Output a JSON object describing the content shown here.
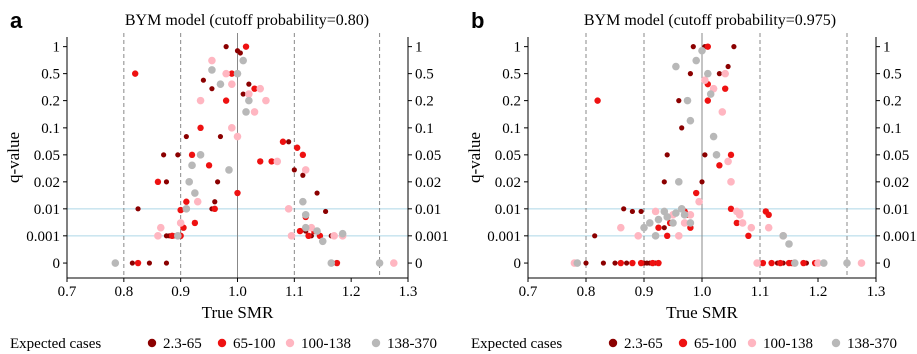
{
  "colors": {
    "series": [
      "#8b0000",
      "#ee1111",
      "#ffb6c1",
      "#b8b8b8"
    ],
    "refline": "#add8e6",
    "vline": "#888888",
    "axis": "#000000"
  },
  "legend": {
    "title": "Expected cases",
    "placement": "bottom",
    "labels": [
      "2.3-65",
      "65-100",
      "100-138",
      "138-370"
    ]
  },
  "chart_data": [
    {
      "type": "scatter",
      "panel_label": "a",
      "title": "BYM model (cutoff probability=0.80)",
      "xlabel": "True SMR",
      "ylabel": "q-value",
      "xlim": [
        0.7,
        1.3
      ],
      "x_ticks": [
        "0.7",
        "0.8",
        "0.9",
        "1.0",
        "1.1",
        "1.2",
        "1.3"
      ],
      "y_ticks": [
        "0",
        "0.001",
        "0.01",
        "0.02",
        "0.05",
        "0.1",
        "0.2",
        "0.5",
        "1"
      ],
      "y_ticks_right": [
        "0",
        "0.001",
        "0.01",
        "0.02",
        "0.05",
        "0.1",
        "0.2",
        "0.5",
        "1"
      ],
      "grid": false,
      "reference_hlines": [
        "0.001",
        "0.01"
      ],
      "dashed_vlines": [
        0.8,
        0.9,
        1.1,
        1.25
      ],
      "solid_vline": 1.0,
      "series": [
        {
          "name": "2.3-65",
          "points": [
            [
              0.815,
              "0"
            ],
            [
              0.845,
              "0"
            ],
            [
              0.875,
              "0"
            ],
            [
              0.89,
              "0.001"
            ],
            [
              0.88,
              "0.001"
            ],
            [
              0.875,
              "0.001"
            ],
            [
              0.825,
              "0.01"
            ],
            [
              0.87,
              "0.05"
            ],
            [
              0.875,
              "0.02"
            ],
            [
              0.895,
              "0.05"
            ],
            [
              0.91,
              "0.08"
            ],
            [
              0.94,
              "0.4"
            ],
            [
              0.955,
              "0.3"
            ],
            [
              0.98,
              "1"
            ],
            [
              1.0,
              "0.9"
            ],
            [
              1.005,
              "0.85"
            ],
            [
              1.01,
              "0.25"
            ],
            [
              0.97,
              "0.08"
            ],
            [
              0.965,
              "0.02"
            ],
            [
              0.92,
              "0.05"
            ],
            [
              1.09,
              "0.07"
            ],
            [
              1.1,
              "0.03"
            ],
            [
              1.115,
              "0.025"
            ],
            [
              1.14,
              "0.015"
            ],
            [
              1.155,
              "0.008"
            ],
            [
              1.165,
              "0.001"
            ],
            [
              1.13,
              "0.001"
            ],
            [
              1.12,
              "0.0015"
            ],
            [
              0.955,
              "0.01"
            ],
            [
              0.96,
              "0.012"
            ],
            [
              1.02,
              "0.35"
            ]
          ]
        },
        {
          "name": "65-100",
          "points": [
            [
              0.82,
              "0.5"
            ],
            [
              0.825,
              "0"
            ],
            [
              0.86,
              "0.02"
            ],
            [
              0.885,
              "0.001"
            ],
            [
              0.9,
              "0.001"
            ],
            [
              0.905,
              "0.002"
            ],
            [
              0.92,
              "0.05"
            ],
            [
              0.935,
              "0.1"
            ],
            [
              0.95,
              "0.035"
            ],
            [
              0.98,
              "0.2"
            ],
            [
              0.99,
              "0.5"
            ],
            [
              1.015,
              "1"
            ],
            [
              1.03,
              "0.3"
            ],
            [
              1.04,
              "0.04"
            ],
            [
              1.06,
              "0.04"
            ],
            [
              1.08,
              "0.07"
            ],
            [
              1.105,
              "0.06"
            ],
            [
              1.115,
              "0.05"
            ],
            [
              1.12,
              "0.005"
            ],
            [
              1.11,
              "0.0015"
            ],
            [
              1.125,
              "0.001"
            ],
            [
              1.145,
              "0.001"
            ],
            [
              1.135,
              "0.0015"
            ],
            [
              1.175,
              "0"
            ],
            [
              0.9,
              "0.009"
            ],
            [
              0.925,
              "0.003"
            ],
            [
              0.96,
              "0.01"
            ],
            [
              1.0,
              "0.015"
            ],
            [
              0.91,
              "0.012"
            ]
          ]
        },
        {
          "name": "100-138",
          "points": [
            [
              0.86,
              "0.001"
            ],
            [
              0.865,
              "0.002"
            ],
            [
              0.9,
              "0.003"
            ],
            [
              0.93,
              "0.012"
            ],
            [
              0.955,
              "0.7"
            ],
            [
              0.98,
              "0.5"
            ],
            [
              0.99,
              "0.35"
            ],
            [
              1.02,
              "0.25"
            ],
            [
              1.03,
              "0.15"
            ],
            [
              1.05,
              "0.2"
            ],
            [
              1.07,
              "0.04"
            ],
            [
              1.09,
              "0.01"
            ],
            [
              1.12,
              "0.03"
            ],
            [
              1.13,
              "0.002"
            ],
            [
              1.17,
              "0.001"
            ],
            [
              1.185,
              "0.001"
            ],
            [
              1.275,
              "0"
            ],
            [
              0.935,
              "0.2"
            ],
            [
              0.99,
              "0.1"
            ],
            [
              1.095,
              "0.001"
            ],
            [
              1.0,
              "0.08"
            ],
            [
              1.04,
              "0.3"
            ]
          ]
        },
        {
          "name": "138-370",
          "points": [
            [
              0.785,
              "0"
            ],
            [
              0.895,
              "0.001"
            ],
            [
              0.91,
              "0.01"
            ],
            [
              0.915,
              "0.02"
            ],
            [
              0.92,
              "0.035"
            ],
            [
              0.935,
              "0.05"
            ],
            [
              0.955,
              "0.55"
            ],
            [
              0.97,
              "0.35"
            ],
            [
              0.985,
              "0.03"
            ],
            [
              1.0,
              "0.5"
            ],
            [
              1.01,
              "0.7"
            ],
            [
              1.02,
              "0.2"
            ],
            [
              1.015,
              "0.15"
            ],
            [
              1.115,
              "0.012"
            ],
            [
              1.12,
              "0.002"
            ],
            [
              1.14,
              "0.0015"
            ],
            [
              1.15,
              "0.0008"
            ],
            [
              1.165,
              "0"
            ],
            [
              1.185,
              "0.0012"
            ],
            [
              1.25,
              "0"
            ],
            [
              1.12,
              "0.006"
            ],
            [
              0.925,
              "0.015"
            ]
          ]
        }
      ]
    },
    {
      "type": "scatter",
      "panel_label": "b",
      "title": "BYM model (cutoff probability=0.975)",
      "xlabel": "True SMR",
      "ylabel": "q-value",
      "xlim": [
        0.7,
        1.3
      ],
      "x_ticks": [
        "0.7",
        "0.8",
        "0.9",
        "1.0",
        "1.1",
        "1.2",
        "1.3"
      ],
      "y_ticks": [
        "0",
        "0.001",
        "0.01",
        "0.02",
        "0.05",
        "0.1",
        "0.2",
        "0.5",
        "1"
      ],
      "y_ticks_right": [
        "0",
        "0.001",
        "0.01",
        "0.02",
        "0.05",
        "0.1",
        "0.2",
        "0.5",
        "1"
      ],
      "grid": false,
      "reference_hlines": [
        "0.001",
        "0.01"
      ],
      "dashed_vlines": [
        0.8,
        0.9,
        1.1,
        1.25
      ],
      "solid_vline": 1.0,
      "series": [
        {
          "name": "2.3-65",
          "points": [
            [
              0.8,
              "0"
            ],
            [
              0.83,
              "0"
            ],
            [
              0.85,
              "0"
            ],
            [
              0.87,
              "0"
            ],
            [
              0.88,
              "0"
            ],
            [
              0.9,
              "0"
            ],
            [
              0.905,
              "0"
            ],
            [
              0.91,
              "0"
            ],
            [
              0.92,
              "0"
            ],
            [
              0.815,
              "0.001"
            ],
            [
              0.88,
              "0.008"
            ],
            [
              0.865,
              "0.01"
            ],
            [
              0.935,
              "0.02"
            ],
            [
              0.94,
              "0.05"
            ],
            [
              0.96,
              "0.2"
            ],
            [
              0.965,
              "0.1"
            ],
            [
              0.98,
              "0.5"
            ],
            [
              0.985,
              "1"
            ],
            [
              1.005,
              "1"
            ],
            [
              1.03,
              "0.5"
            ],
            [
              1.045,
              "0.6"
            ],
            [
              1.055,
              "1"
            ],
            [
              1.005,
              "0.05"
            ],
            [
              1.0,
              "0.02"
            ],
            [
              1.12,
              "0"
            ],
            [
              1.13,
              "0"
            ],
            [
              1.14,
              "0"
            ],
            [
              1.16,
              "0"
            ],
            [
              1.18,
              "0"
            ],
            [
              0.895,
              "0.008"
            ],
            [
              0.935,
              "0.002"
            ]
          ]
        },
        {
          "name": "65-100",
          "points": [
            [
              0.82,
              "0.2"
            ],
            [
              0.86,
              "0"
            ],
            [
              0.88,
              "0"
            ],
            [
              0.895,
              "0"
            ],
            [
              0.915,
              "0"
            ],
            [
              0.925,
              "0"
            ],
            [
              0.94,
              "0.001"
            ],
            [
              0.945,
              "0.003"
            ],
            [
              0.96,
              "0.001"
            ],
            [
              0.97,
              "0.008"
            ],
            [
              0.975,
              "0.006"
            ],
            [
              0.98,
              "0.002"
            ],
            [
              0.99,
              "0.015"
            ],
            [
              1.01,
              "0.2"
            ],
            [
              1.01,
              "0.35"
            ],
            [
              1.01,
              "1"
            ],
            [
              1.04,
              "0.3"
            ],
            [
              1.05,
              "0.05"
            ],
            [
              1.06,
              "0.003"
            ],
            [
              1.08,
              "0.001"
            ],
            [
              1.105,
              "0"
            ],
            [
              1.11,
              "0.008"
            ],
            [
              1.115,
              "0.006"
            ],
            [
              1.12,
              "0"
            ],
            [
              1.135,
              "0"
            ],
            [
              1.15,
              "0"
            ],
            [
              1.155,
              "0"
            ],
            [
              1.175,
              "0"
            ],
            [
              1.195,
              "0"
            ],
            [
              1.05,
              "0.01"
            ],
            [
              0.925,
              "0.002"
            ],
            [
              1.03,
              "0.035"
            ]
          ]
        },
        {
          "name": "100-138",
          "points": [
            [
              0.78,
              "0"
            ],
            [
              0.86,
              "0.002"
            ],
            [
              0.89,
              "0.001"
            ],
            [
              0.92,
              "0.008"
            ],
            [
              0.95,
              "0.006"
            ],
            [
              0.96,
              "0.001"
            ],
            [
              0.97,
              "0.003"
            ],
            [
              0.98,
              "0.006"
            ],
            [
              0.995,
              "0.012"
            ],
            [
              1.005,
              "0.4"
            ],
            [
              1.02,
              "0.3"
            ],
            [
              1.035,
              "0.15"
            ],
            [
              1.045,
              "0.04"
            ],
            [
              1.05,
              "0.02"
            ],
            [
              1.06,
              "0.008"
            ],
            [
              1.065,
              "0.007"
            ],
            [
              1.065,
              "0.006"
            ],
            [
              1.07,
              "0.003"
            ],
            [
              1.085,
              "0.002"
            ],
            [
              1.095,
              "0"
            ],
            [
              1.115,
              "0.002"
            ],
            [
              1.14,
              "0.001"
            ],
            [
              1.2,
              "0"
            ],
            [
              1.275,
              "0"
            ],
            [
              1.04,
              "0.5"
            ]
          ]
        },
        {
          "name": "138-370",
          "points": [
            [
              0.785,
              "0"
            ],
            [
              0.9,
              "0.002"
            ],
            [
              0.91,
              "0.003"
            ],
            [
              0.92,
              "0.001"
            ],
            [
              0.925,
              "0.004"
            ],
            [
              0.935,
              "0.008"
            ],
            [
              0.94,
              "0.005"
            ],
            [
              0.955,
              "0.007"
            ],
            [
              0.96,
              "0.02"
            ],
            [
              0.965,
              "0.01"
            ],
            [
              0.97,
              "0.006"
            ],
            [
              0.955,
              "0.6"
            ],
            [
              0.975,
              "0.2"
            ],
            [
              0.98,
              "0.12"
            ],
            [
              0.99,
              "0.7"
            ],
            [
              1.0,
              "0.9"
            ],
            [
              1.01,
              "0.5"
            ],
            [
              1.015,
              "0.25"
            ],
            [
              1.02,
              "0.08"
            ],
            [
              1.025,
              "0.05"
            ],
            [
              1.14,
              "0.001"
            ],
            [
              1.15,
              "0.0007"
            ],
            [
              1.16,
              "0"
            ],
            [
              1.21,
              "0"
            ],
            [
              1.25,
              "0"
            ],
            [
              0.98,
              "0.003"
            ],
            [
              0.95,
              "0.003"
            ]
          ]
        }
      ]
    }
  ]
}
